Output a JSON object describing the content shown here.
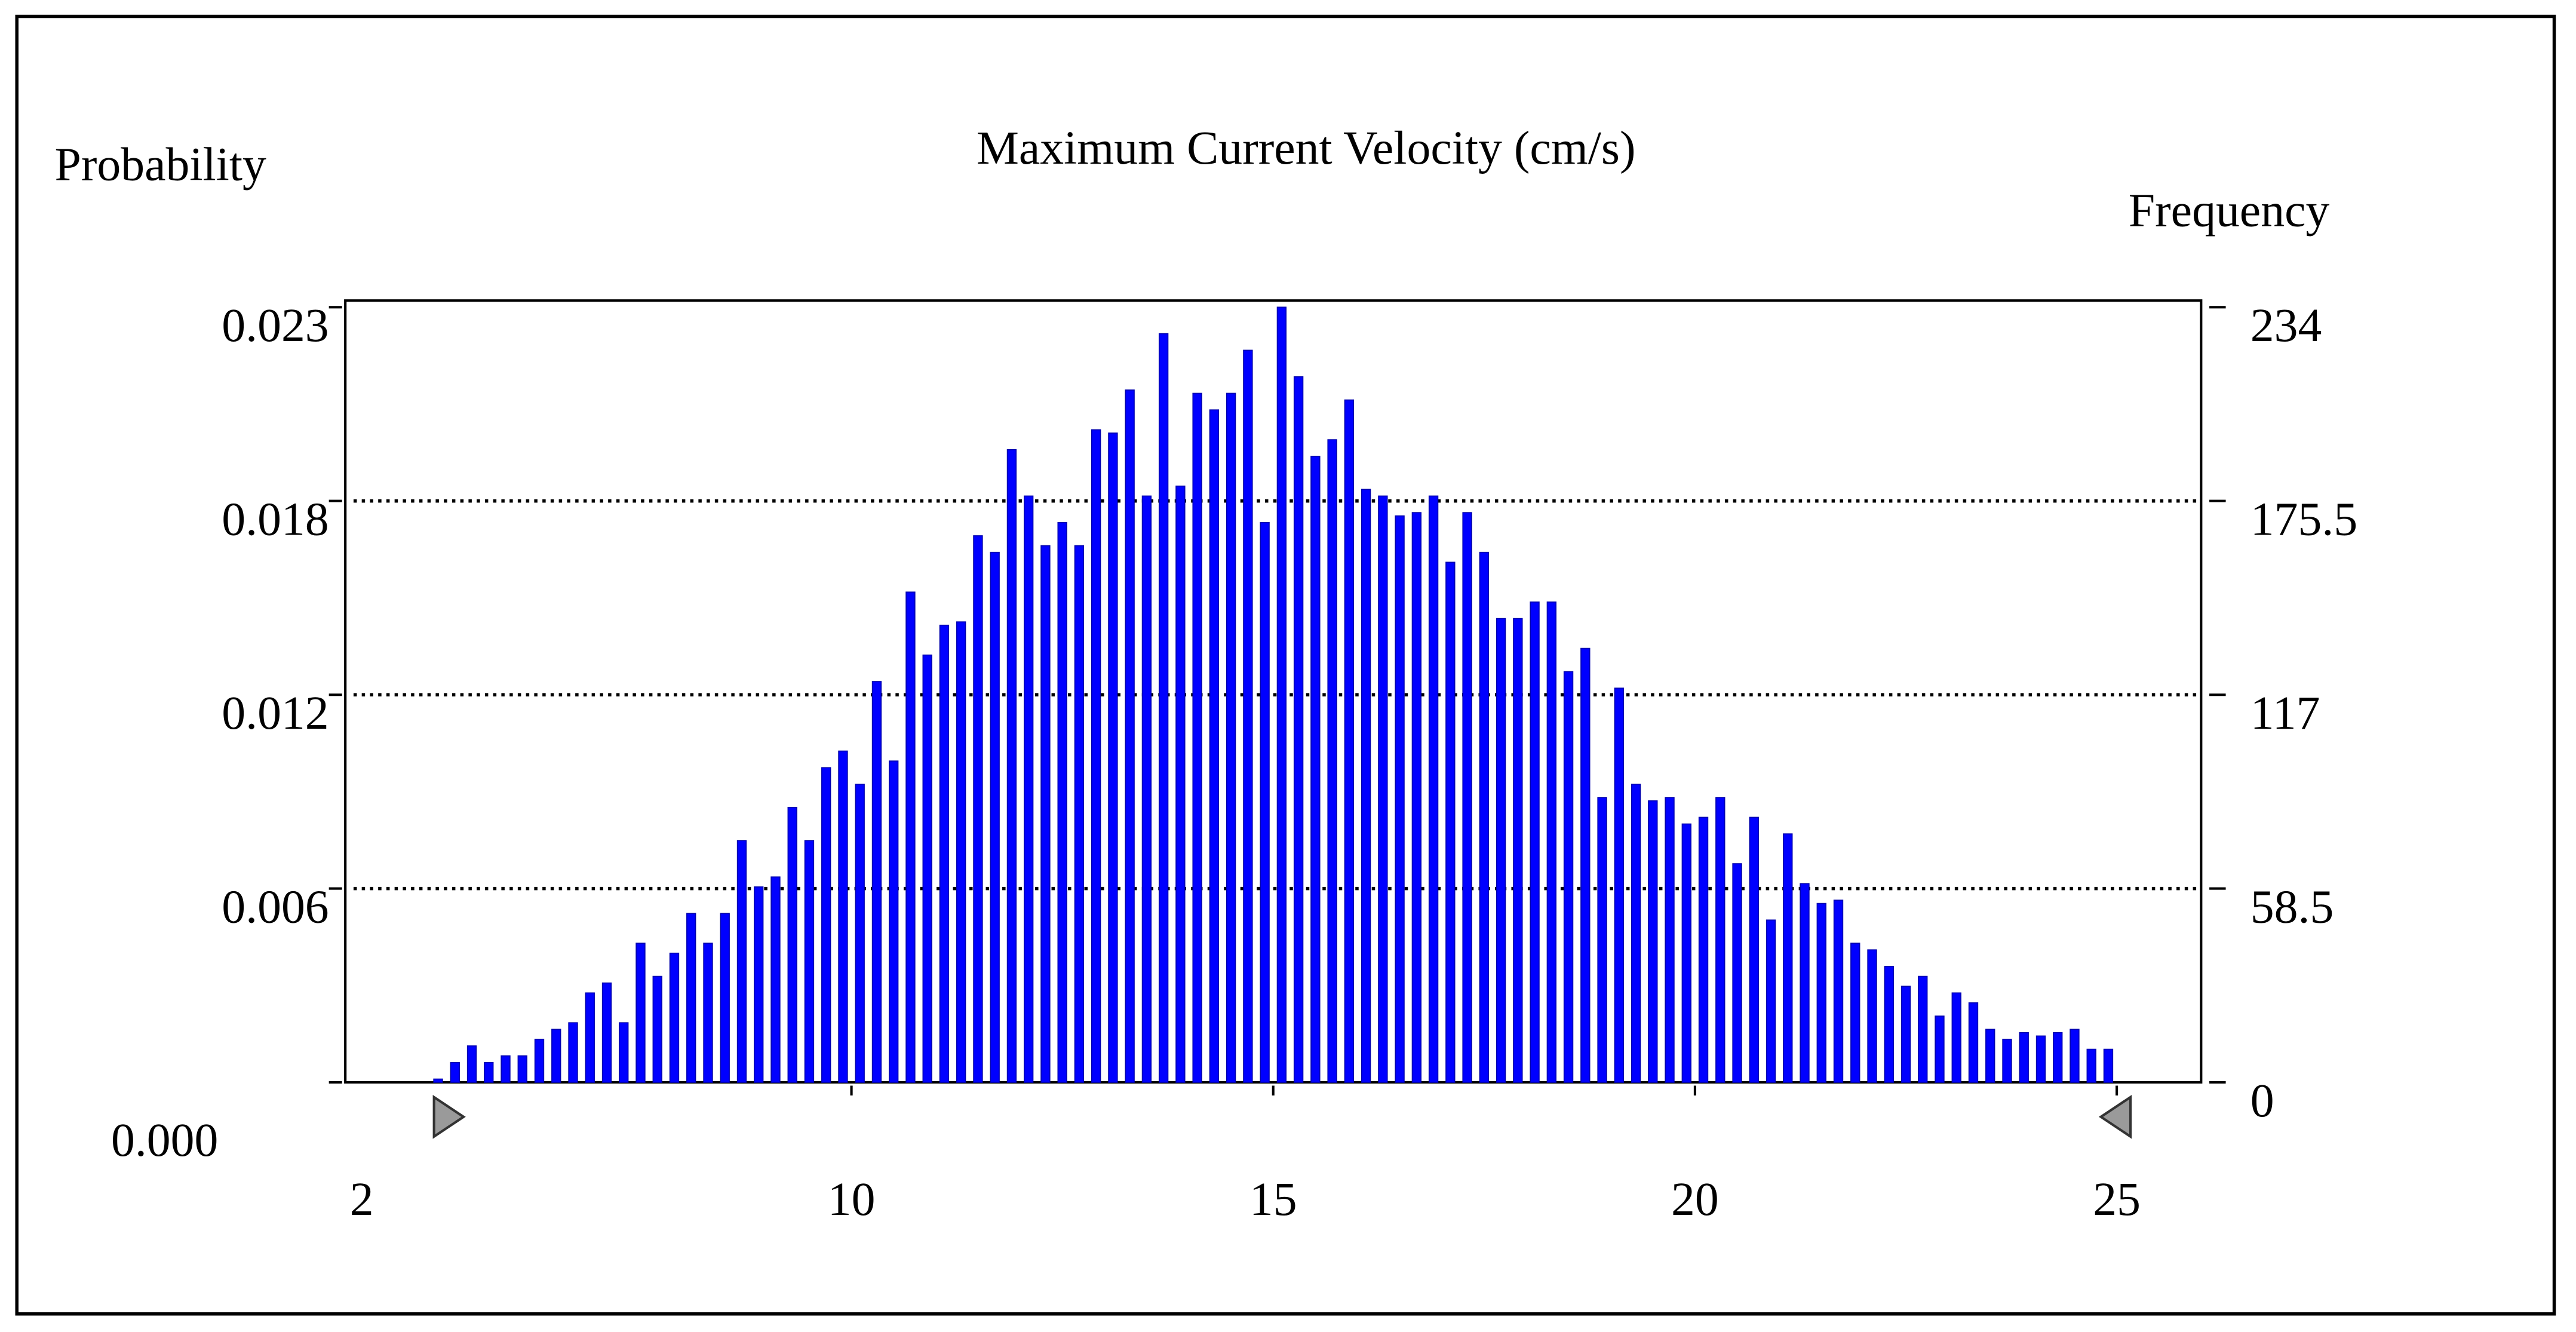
{
  "chart_data": {
    "type": "histogram",
    "title": "Maximum Current Velocity (cm/s)",
    "ylabel": "Frequency",
    "y2label": "Probability",
    "color": "#0000ff",
    "bins": [
      5.0,
      5.2,
      5.4,
      5.6,
      5.8,
      6.0,
      6.2,
      6.4,
      6.6,
      6.8,
      7.0,
      7.2,
      7.4,
      7.6,
      7.8,
      8.0,
      8.2,
      8.4,
      8.6,
      8.8,
      9.0,
      9.2,
      9.4,
      9.6,
      9.8,
      10.0,
      10.2,
      10.4,
      10.6,
      10.8,
      11.0,
      11.2,
      11.4,
      11.6,
      11.8,
      12.0,
      12.2,
      12.4,
      12.6,
      12.8,
      13.0,
      13.2,
      13.4,
      13.6,
      13.8,
      14.0,
      14.2,
      14.4,
      14.6,
      14.8,
      15.0,
      15.2,
      15.4,
      15.6,
      15.8,
      16.0,
      16.2,
      16.4,
      16.6,
      16.8,
      17.0,
      17.2,
      17.4,
      17.6,
      17.8,
      18.0,
      18.2,
      18.4,
      18.6,
      18.8,
      19.0,
      19.2,
      19.4,
      19.6,
      19.8,
      20.0,
      20.2,
      20.4,
      20.6,
      20.8,
      21.0,
      21.2,
      21.4,
      21.6,
      21.8,
      22.0,
      22.2,
      22.4,
      22.6,
      22.8,
      23.0,
      23.2,
      23.4,
      23.6,
      23.8,
      24.0,
      24.2,
      24.4,
      24.6,
      24.8,
      25.0
    ],
    "values": [
      1,
      6,
      11,
      6,
      8,
      8,
      13,
      16,
      18,
      27,
      30,
      18,
      42,
      32,
      39,
      51,
      42,
      51,
      73,
      59,
      62,
      83,
      73,
      95,
      100,
      90,
      121,
      97,
      148,
      129,
      138,
      139,
      165,
      160,
      191,
      177,
      162,
      169,
      162,
      197,
      196,
      209,
      177,
      226,
      180,
      208,
      203,
      208,
      221,
      169,
      234,
      213,
      189,
      194,
      206,
      179,
      177,
      171,
      172,
      177,
      157,
      172,
      160,
      140,
      140,
      145,
      145,
      124,
      131,
      86,
      119,
      90,
      85,
      86,
      78,
      80,
      86,
      66,
      80,
      49,
      75,
      60,
      54,
      55,
      42,
      40,
      35,
      29,
      32,
      20,
      27,
      24,
      16,
      13,
      15,
      14,
      15,
      16,
      10,
      10
    ],
    "xlim": [
      4,
      26
    ],
    "xticks": [
      10,
      15,
      20,
      25
    ],
    "x_start_label": 2,
    "ylim": [
      0,
      236
    ],
    "yticks": [
      0,
      58.5,
      117,
      175.5,
      234
    ],
    "y2lim": [
      0,
      0.0236
    ],
    "y2ticks": [
      {
        "value": 0,
        "label": "0.000"
      },
      {
        "value": 0.00585,
        "label": "0.006"
      },
      {
        "value": 0.0117,
        "label": "0.012"
      },
      {
        "value": 0.01755,
        "label": "0.018"
      },
      {
        "value": 0.0234,
        "label": "0.023"
      }
    ],
    "grid": true
  }
}
